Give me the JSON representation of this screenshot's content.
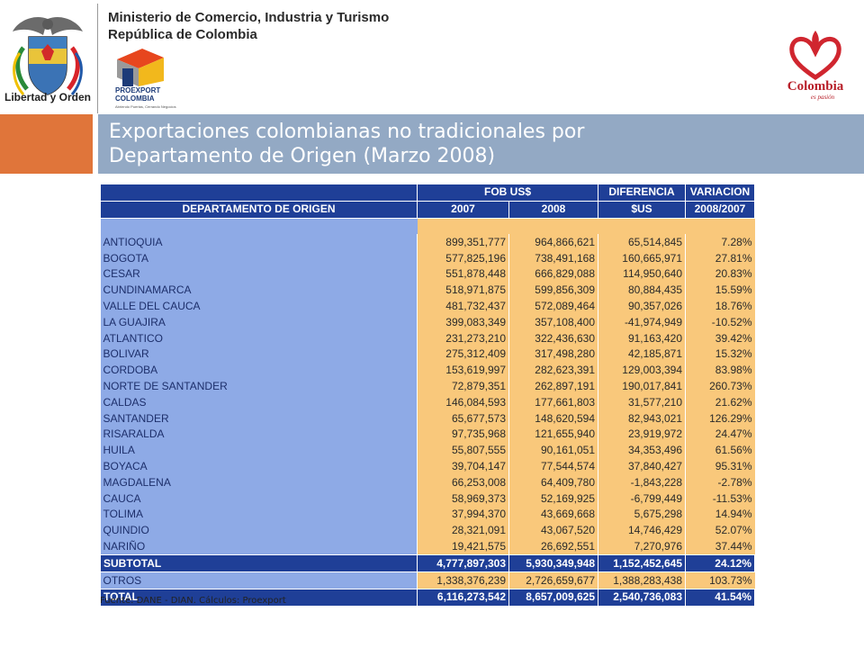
{
  "header": {
    "coat_caption": "Libertad y Orden",
    "ministry_line1": "Ministerio de Comercio, Industria y Turismo",
    "ministry_line2": "República de Colombia",
    "proexport_name_line1": "PROEXPORT",
    "proexport_name_line2": "COLOMBIA",
    "proexport_tagline": "Abriendo Puertas, Cerrando Negocios",
    "colombia_brand": "Colombia",
    "colombia_tagline": "es pasión"
  },
  "title": {
    "line1": "Exportaciones colombianas no tradicionales por",
    "line2": "Departamento de Origen (Marzo 2008)"
  },
  "table": {
    "header": {
      "dept": "DEPARTAMENTO DE ORIGEN",
      "fob": "FOB US$",
      "y2007": "2007",
      "y2008": "2008",
      "diff": "DIFERENCIA",
      "diff_unit": "$US",
      "var": "VARIACION",
      "var_period": "2008/2007"
    },
    "rows": [
      {
        "dept": "ANTIOQUIA",
        "y2007": "899,351,777",
        "y2008": "964,866,621",
        "diff": "65,514,845",
        "var": "7.28%"
      },
      {
        "dept": "BOGOTA",
        "y2007": "577,825,196",
        "y2008": "738,491,168",
        "diff": "160,665,971",
        "var": "27.81%"
      },
      {
        "dept": "CESAR",
        "y2007": "551,878,448",
        "y2008": "666,829,088",
        "diff": "114,950,640",
        "var": "20.83%"
      },
      {
        "dept": "CUNDINAMARCA",
        "y2007": "518,971,875",
        "y2008": "599,856,309",
        "diff": "80,884,435",
        "var": "15.59%"
      },
      {
        "dept": "VALLE DEL CAUCA",
        "y2007": "481,732,437",
        "y2008": "572,089,464",
        "diff": "90,357,026",
        "var": "18.76%"
      },
      {
        "dept": "LA GUAJIRA",
        "y2007": "399,083,349",
        "y2008": "357,108,400",
        "diff": "-41,974,949",
        "var": "-10.52%"
      },
      {
        "dept": "ATLANTICO",
        "y2007": "231,273,210",
        "y2008": "322,436,630",
        "diff": "91,163,420",
        "var": "39.42%"
      },
      {
        "dept": "BOLIVAR",
        "y2007": "275,312,409",
        "y2008": "317,498,280",
        "diff": "42,185,871",
        "var": "15.32%"
      },
      {
        "dept": "CORDOBA",
        "y2007": "153,619,997",
        "y2008": "282,623,391",
        "diff": "129,003,394",
        "var": "83.98%"
      },
      {
        "dept": "NORTE DE SANTANDER",
        "y2007": "72,879,351",
        "y2008": "262,897,191",
        "diff": "190,017,841",
        "var": "260.73%"
      },
      {
        "dept": "CALDAS",
        "y2007": "146,084,593",
        "y2008": "177,661,803",
        "diff": "31,577,210",
        "var": "21.62%"
      },
      {
        "dept": "SANTANDER",
        "y2007": "65,677,573",
        "y2008": "148,620,594",
        "diff": "82,943,021",
        "var": "126.29%"
      },
      {
        "dept": "RISARALDA",
        "y2007": "97,735,968",
        "y2008": "121,655,940",
        "diff": "23,919,972",
        "var": "24.47%"
      },
      {
        "dept": "HUILA",
        "y2007": "55,807,555",
        "y2008": "90,161,051",
        "diff": "34,353,496",
        "var": "61.56%"
      },
      {
        "dept": "BOYACA",
        "y2007": "39,704,147",
        "y2008": "77,544,574",
        "diff": "37,840,427",
        "var": "95.31%"
      },
      {
        "dept": "MAGDALENA",
        "y2007": "66,253,008",
        "y2008": "64,409,780",
        "diff": "-1,843,228",
        "var": "-2.78%"
      },
      {
        "dept": "CAUCA",
        "y2007": "58,969,373",
        "y2008": "52,169,925",
        "diff": "-6,799,449",
        "var": "-11.53%"
      },
      {
        "dept": "TOLIMA",
        "y2007": "37,994,370",
        "y2008": "43,669,668",
        "diff": "5,675,298",
        "var": "14.94%"
      },
      {
        "dept": "QUINDIO",
        "y2007": "28,321,091",
        "y2008": "43,067,520",
        "diff": "14,746,429",
        "var": "52.07%"
      },
      {
        "dept": "NARIÑO",
        "y2007": "19,421,575",
        "y2008": "26,692,551",
        "diff": "7,270,976",
        "var": "37.44%"
      }
    ],
    "subtotal": {
      "dept": "SUBTOTAL",
      "y2007": "4,777,897,303",
      "y2008": "5,930,349,948",
      "diff": "1,152,452,645",
      "var": "24.12%"
    },
    "otros": {
      "dept": "OTROS",
      "y2007": "1,338,376,239",
      "y2008": "2,726,659,677",
      "diff": "1,388,283,438",
      "var": "103.73%"
    },
    "total": {
      "dept": "TOTAL",
      "y2007": "6,116,273,542",
      "y2008": "8,657,009,625",
      "diff": "2,540,736,083",
      "var": "41.54%"
    }
  },
  "footer": {
    "source": "Fuente: DANE - DIAN. Cálculos: Proexport"
  },
  "colors": {
    "header_blue": "#1f3f97",
    "dept_blue": "#8eaae6",
    "value_orange": "#f9c87b",
    "title_band": "#93a9c4",
    "accent_orange": "#e0753a"
  }
}
